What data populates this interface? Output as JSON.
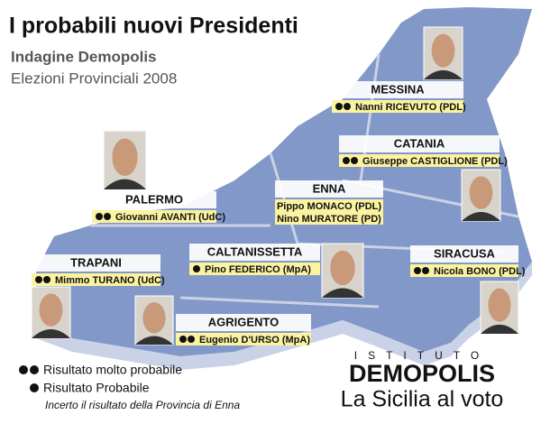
{
  "header": {
    "title": "I probabili nuovi Presidenti",
    "subtitle": "Indagine Demopolis",
    "subtitle2": "Elezioni Provinciali 2008"
  },
  "provinces": [
    {
      "name": "MESSINA",
      "dots": 2,
      "candidates": [
        "Nanni RICEVUTO (PDL)"
      ]
    },
    {
      "name": "CATANIA",
      "dots": 2,
      "candidates": [
        "Giuseppe CASTIGLIONE (PDL)"
      ]
    },
    {
      "name": "PALERMO",
      "dots": 2,
      "candidates": [
        "Giovanni AVANTI (UdC)"
      ]
    },
    {
      "name": "ENNA",
      "dots": 0,
      "candidates": [
        "Pippo MONACO (PDL)",
        "Nino MURATORE (PD)"
      ]
    },
    {
      "name": "CALTANISSETTA",
      "dots": 1,
      "candidates": [
        "Pino FEDERICO (MpA)"
      ]
    },
    {
      "name": "TRAPANI",
      "dots": 2,
      "candidates": [
        "Mimmo TURANO (UdC)"
      ]
    },
    {
      "name": "SIRACUSA",
      "dots": 2,
      "candidates": [
        "Nicola BONO (PDL)"
      ]
    },
    {
      "name": "AGRIGENTO",
      "dots": 2,
      "candidates": [
        "Eugenio D'URSO (MpA)"
      ]
    }
  ],
  "legend": {
    "very_probable": "Risultato molto probabile",
    "probable": "Risultato Probabile",
    "note": "Incerto il risultato della Provincia di Enna"
  },
  "brand": {
    "institute": "ISTITUTO",
    "name": "DEMOPOLIS",
    "tagline": "La Sicilia al voto"
  }
}
